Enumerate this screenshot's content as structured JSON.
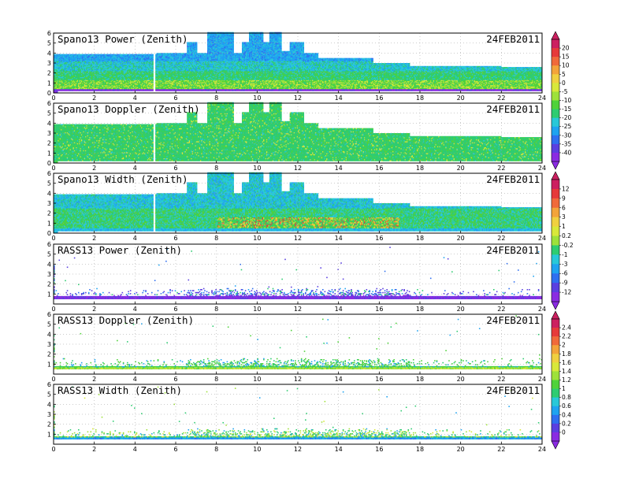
{
  "chart_data": [
    {
      "type": "heatmap",
      "title": "Spano13 Power (Zenith)",
      "date": "24FEB2011",
      "xlim": [
        0,
        24
      ],
      "ylim": [
        0,
        6
      ],
      "xticks": [
        0,
        2,
        4,
        6,
        8,
        10,
        12,
        14,
        16,
        18,
        20,
        22,
        24
      ],
      "yticks": [
        0,
        1,
        2,
        3,
        4,
        5,
        6
      ],
      "grid": true,
      "colorbar_ticks": [
        "20",
        "15",
        "10",
        "5",
        "0",
        "-5",
        "-10",
        "-15",
        "-20",
        "-25",
        "-30",
        "-35",
        "-40"
      ],
      "colorbar_range": [
        -42,
        22
      ],
      "pattern": "spano-power"
    },
    {
      "type": "heatmap",
      "title": "Spano13 Doppler (Zenith)",
      "date": "24FEB2011",
      "xlim": [
        0,
        24
      ],
      "ylim": [
        0,
        6
      ],
      "xticks": [
        0,
        2,
        4,
        6,
        8,
        10,
        12,
        14,
        16,
        18,
        20,
        22,
        24
      ],
      "yticks": [
        0,
        1,
        2,
        3,
        4,
        5,
        6
      ],
      "grid": true,
      "pattern": "spano-doppler"
    },
    {
      "type": "heatmap",
      "title": "Spano13 Width (Zenith)",
      "date": "24FEB2011",
      "xlim": [
        0,
        24
      ],
      "ylim": [
        0,
        6
      ],
      "xticks": [
        0,
        2,
        4,
        6,
        8,
        10,
        12,
        14,
        16,
        18,
        20,
        22,
        24
      ],
      "yticks": [
        0,
        1,
        2,
        3,
        4,
        5,
        6
      ],
      "grid": true,
      "colorbar_ticks": [
        "12",
        "9",
        "6",
        "3",
        "1",
        "0.2",
        "-0.2",
        "-1",
        "-3",
        "-6",
        "-9",
        "-12"
      ],
      "pattern": "spano-width"
    },
    {
      "type": "heatmap",
      "title": "RASS13 Power (Zenith)",
      "date": "24FEB2011",
      "xlim": [
        0,
        24
      ],
      "ylim": [
        0,
        6
      ],
      "xticks": [
        0,
        2,
        4,
        6,
        8,
        10,
        12,
        14,
        16,
        18,
        20,
        22,
        24
      ],
      "yticks": [
        1,
        2,
        3,
        4,
        5,
        6
      ],
      "grid": true,
      "pattern": "rass-power"
    },
    {
      "type": "heatmap",
      "title": "RASS13 Doppler (Zenith)",
      "date": "24FEB2011",
      "xlim": [
        0,
        24
      ],
      "ylim": [
        0,
        6
      ],
      "xticks": [
        0,
        2,
        4,
        6,
        8,
        10,
        12,
        14,
        16,
        18,
        20,
        22,
        24
      ],
      "yticks": [
        1,
        2,
        3,
        4,
        5,
        6
      ],
      "grid": true,
      "colorbar_ticks": [
        "2.4",
        "2.2",
        "2",
        "1.8",
        "1.6",
        "1.4",
        "1.2",
        "1",
        "0.8",
        "0.6",
        "0.4",
        "0.2",
        "0"
      ],
      "pattern": "rass-doppler"
    },
    {
      "type": "heatmap",
      "title": "RASS13 Width (Zenith)",
      "date": "24FEB2011",
      "xlim": [
        0,
        24
      ],
      "ylim": [
        0,
        6
      ],
      "xticks": [
        0,
        2,
        4,
        6,
        8,
        10,
        12,
        14,
        16,
        18,
        20,
        22,
        24
      ],
      "yticks": [
        1,
        2,
        3,
        4,
        5,
        6
      ],
      "grid": true,
      "pattern": "rass-width"
    }
  ],
  "colorbars": [
    {
      "panels": [
        0,
        1
      ],
      "ticks": [
        "20",
        "15",
        "10",
        "5",
        "0",
        "-5",
        "-10",
        "-15",
        "-20",
        "-25",
        "-30",
        "-35",
        "-40"
      ]
    },
    {
      "panels": [
        2,
        3
      ],
      "ticks": [
        "12",
        "9",
        "6",
        "3",
        "1",
        "0.2",
        "-0.2",
        "-1",
        "-3",
        "-6",
        "-9",
        "-12"
      ]
    },
    {
      "panels": [
        4,
        5
      ],
      "ticks": [
        "2.4",
        "2.2",
        "2",
        "1.8",
        "1.6",
        "1.4",
        "1.2",
        "1",
        "0.8",
        "0.6",
        "0.4",
        "0.2",
        "0"
      ]
    }
  ],
  "colors": {
    "palette": [
      "#8a2be2",
      "#5a3fe0",
      "#2f6ff0",
      "#1fa3f0",
      "#28c8d8",
      "#2ecc71",
      "#4fd23a",
      "#9ee13a",
      "#d8e83a",
      "#f0d040",
      "#f3a43a",
      "#f06a3a",
      "#e63a3a",
      "#cc2060"
    ]
  }
}
